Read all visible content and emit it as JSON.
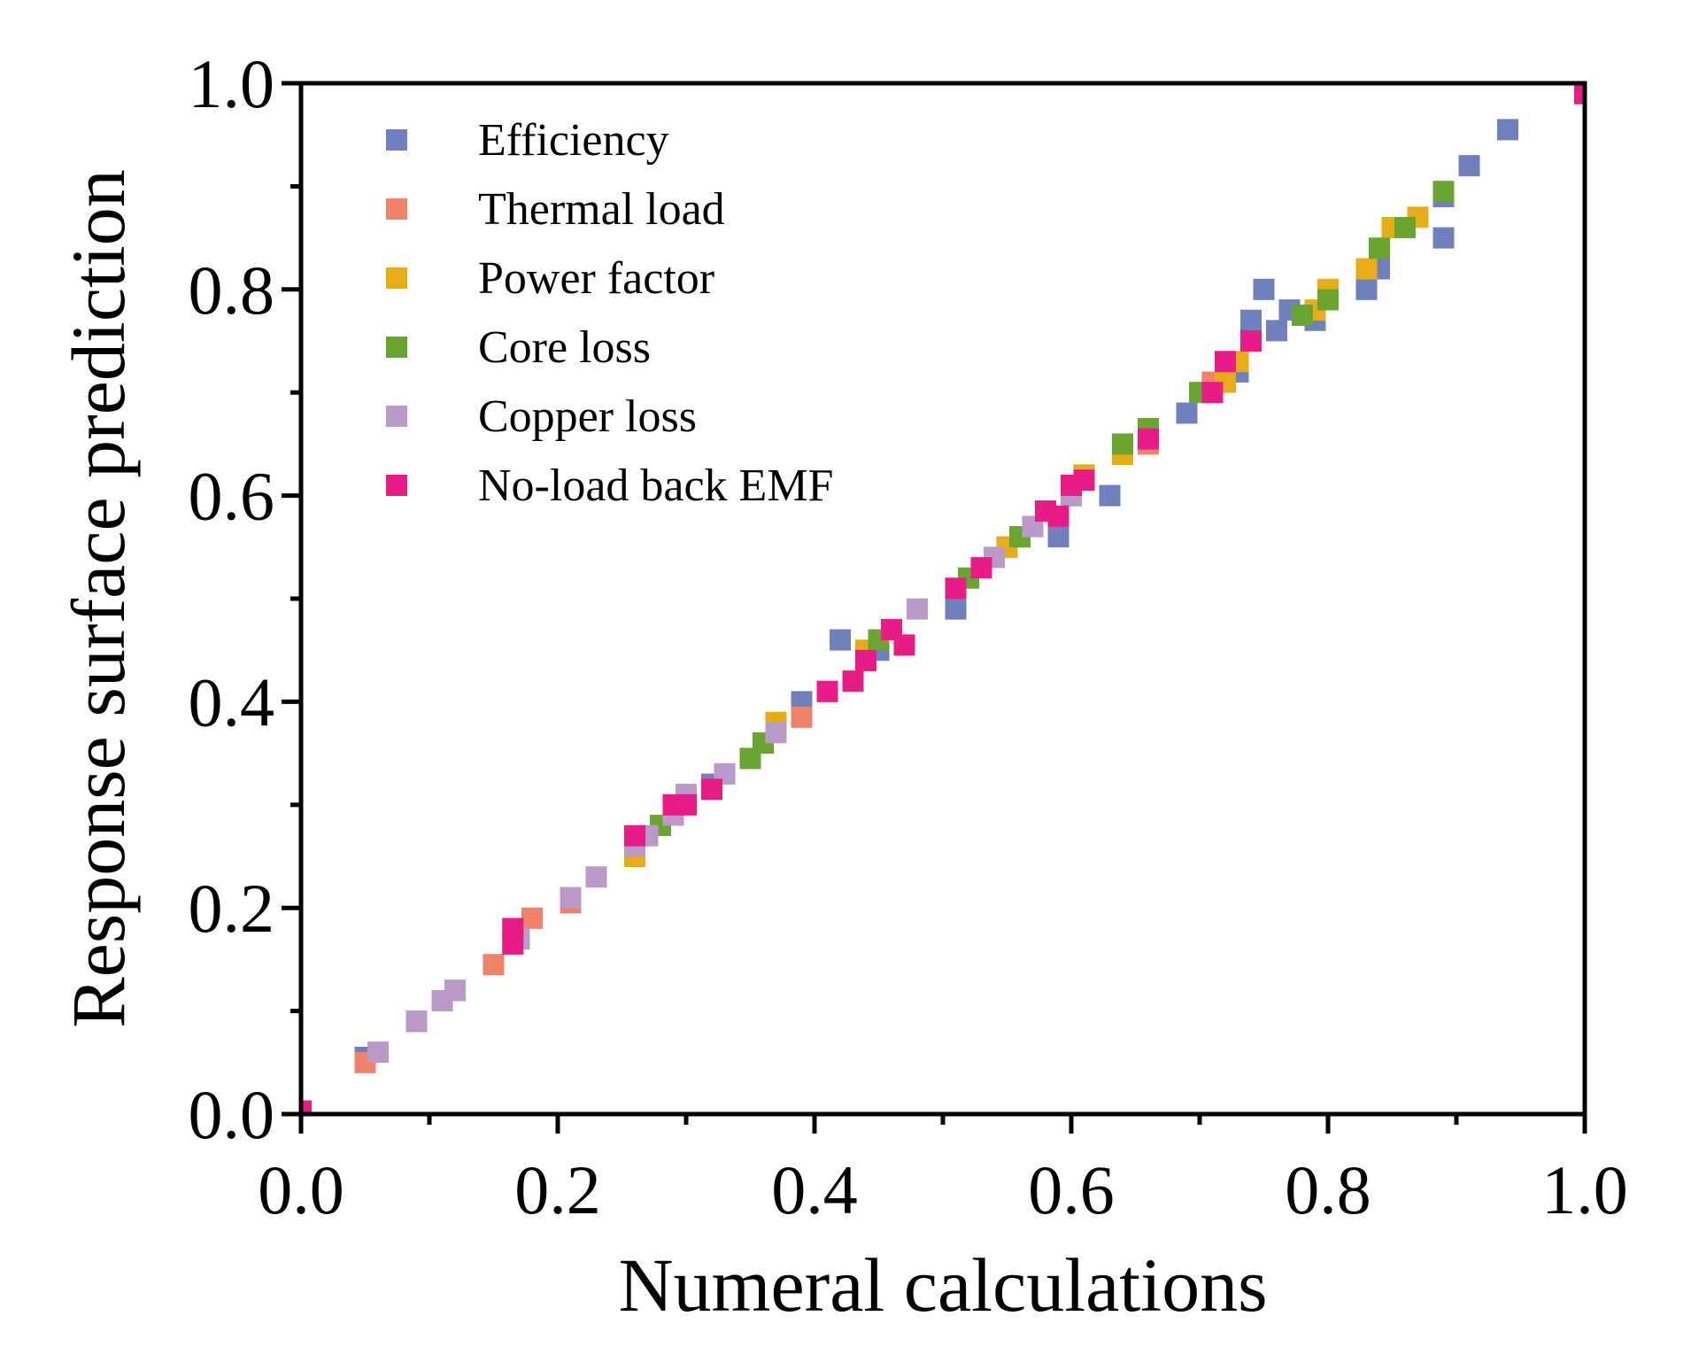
{
  "chart_data": {
    "type": "scatter",
    "title": "",
    "xlabel": "Numeral calculations",
    "ylabel": "Response surface prediction",
    "xlim": [
      0,
      1
    ],
    "ylim": [
      0,
      1
    ],
    "xticks": [
      "0.0",
      "0.2",
      "0.4",
      "0.6",
      "0.8",
      "1.0"
    ],
    "yticks": [
      "0.0",
      "0.2",
      "0.4",
      "0.6",
      "0.8",
      "1.0"
    ],
    "grid": false,
    "legend_position": "top-left",
    "series": [
      {
        "name": "Efficiency",
        "color": "#6f80bd",
        "points": [
          [
            0.05,
            0.055
          ],
          [
            0.09,
            0.09
          ],
          [
            0.12,
            0.12
          ],
          [
            0.17,
            0.17
          ],
          [
            0.26,
            0.26
          ],
          [
            0.32,
            0.32
          ],
          [
            0.36,
            0.36
          ],
          [
            0.39,
            0.4
          ],
          [
            0.42,
            0.46
          ],
          [
            0.45,
            0.45
          ],
          [
            0.51,
            0.49
          ],
          [
            0.55,
            0.55
          ],
          [
            0.59,
            0.56
          ],
          [
            0.63,
            0.6
          ],
          [
            0.66,
            0.66
          ],
          [
            0.69,
            0.68
          ],
          [
            0.73,
            0.72
          ],
          [
            0.74,
            0.77
          ],
          [
            0.75,
            0.8
          ],
          [
            0.76,
            0.76
          ],
          [
            0.77,
            0.78
          ],
          [
            0.79,
            0.77
          ],
          [
            0.83,
            0.8
          ],
          [
            0.84,
            0.82
          ],
          [
            0.89,
            0.85
          ],
          [
            0.89,
            0.89
          ],
          [
            0.91,
            0.92
          ],
          [
            0.94,
            0.955
          ],
          [
            1.0,
            0.99
          ]
        ]
      },
      {
        "name": "Thermal load",
        "color": "#f0826a",
        "points": [
          [
            0.05,
            0.05
          ],
          [
            0.09,
            0.09
          ],
          [
            0.15,
            0.145
          ],
          [
            0.18,
            0.19
          ],
          [
            0.21,
            0.205
          ],
          [
            0.26,
            0.26
          ],
          [
            0.33,
            0.33
          ],
          [
            0.39,
            0.385
          ],
          [
            0.41,
            0.41
          ],
          [
            0.45,
            0.46
          ],
          [
            0.51,
            0.51
          ],
          [
            0.56,
            0.56
          ],
          [
            0.6,
            0.6
          ],
          [
            0.66,
            0.65
          ],
          [
            0.71,
            0.71
          ]
        ]
      },
      {
        "name": "Power factor",
        "color": "#e8ad16",
        "points": [
          [
            0.26,
            0.25
          ],
          [
            0.3,
            0.31
          ],
          [
            0.37,
            0.38
          ],
          [
            0.44,
            0.45
          ],
          [
            0.51,
            0.51
          ],
          [
            0.55,
            0.55
          ],
          [
            0.61,
            0.62
          ],
          [
            0.64,
            0.64
          ],
          [
            0.72,
            0.71
          ],
          [
            0.73,
            0.73
          ],
          [
            0.79,
            0.78
          ],
          [
            0.8,
            0.8
          ],
          [
            0.83,
            0.82
          ],
          [
            0.85,
            0.86
          ],
          [
            0.87,
            0.87
          ],
          [
            1.0,
            0.99
          ]
        ]
      },
      {
        "name": "Core loss",
        "color": "#6aa532",
        "points": [
          [
            0.28,
            0.28
          ],
          [
            0.35,
            0.345
          ],
          [
            0.36,
            0.36
          ],
          [
            0.44,
            0.44
          ],
          [
            0.45,
            0.46
          ],
          [
            0.46,
            0.47
          ],
          [
            0.52,
            0.52
          ],
          [
            0.56,
            0.56
          ],
          [
            0.57,
            0.57
          ],
          [
            0.6,
            0.6
          ],
          [
            0.64,
            0.65
          ],
          [
            0.66,
            0.665
          ],
          [
            0.7,
            0.7
          ],
          [
            0.78,
            0.775
          ],
          [
            0.8,
            0.79
          ],
          [
            0.84,
            0.84
          ],
          [
            0.86,
            0.86
          ],
          [
            0.89,
            0.895
          ]
        ]
      },
      {
        "name": "Copper loss",
        "color": "#b99ac9",
        "points": [
          [
            0.06,
            0.06
          ],
          [
            0.09,
            0.09
          ],
          [
            0.11,
            0.11
          ],
          [
            0.12,
            0.12
          ],
          [
            0.17,
            0.17
          ],
          [
            0.21,
            0.21
          ],
          [
            0.23,
            0.23
          ],
          [
            0.26,
            0.26
          ],
          [
            0.27,
            0.27
          ],
          [
            0.29,
            0.29
          ],
          [
            0.3,
            0.31
          ],
          [
            0.33,
            0.33
          ],
          [
            0.37,
            0.37
          ],
          [
            0.48,
            0.49
          ],
          [
            0.54,
            0.54
          ],
          [
            0.57,
            0.57
          ],
          [
            0.6,
            0.6
          ]
        ]
      },
      {
        "name": "No-load back EMF",
        "color": "#e81c86",
        "points": [
          [
            0.0,
            0.003
          ],
          [
            0.165,
            0.165
          ],
          [
            0.165,
            0.18
          ],
          [
            0.26,
            0.27
          ],
          [
            0.29,
            0.3
          ],
          [
            0.3,
            0.3
          ],
          [
            0.32,
            0.315
          ],
          [
            0.41,
            0.41
          ],
          [
            0.43,
            0.42
          ],
          [
            0.44,
            0.44
          ],
          [
            0.46,
            0.47
          ],
          [
            0.47,
            0.455
          ],
          [
            0.51,
            0.51
          ],
          [
            0.53,
            0.53
          ],
          [
            0.58,
            0.585
          ],
          [
            0.59,
            0.58
          ],
          [
            0.6,
            0.61
          ],
          [
            0.61,
            0.615
          ],
          [
            0.66,
            0.655
          ],
          [
            0.71,
            0.7
          ],
          [
            0.72,
            0.73
          ],
          [
            0.74,
            0.75
          ],
          [
            1.0,
            0.99
          ]
        ]
      }
    ]
  }
}
